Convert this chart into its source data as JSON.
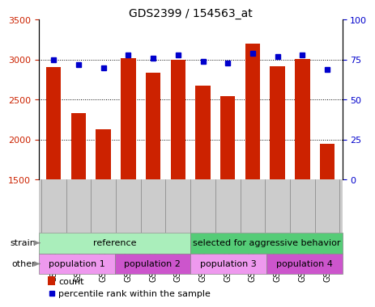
{
  "title": "GDS2399 / 154563_at",
  "samples": [
    "GSM120863",
    "GSM120864",
    "GSM120865",
    "GSM120866",
    "GSM120867",
    "GSM120868",
    "GSM120838",
    "GSM120858",
    "GSM120859",
    "GSM120860",
    "GSM120861",
    "GSM120862"
  ],
  "counts": [
    2910,
    2330,
    2130,
    3020,
    2840,
    3000,
    2670,
    2540,
    3200,
    2920,
    3010,
    1940
  ],
  "percentiles": [
    75,
    72,
    70,
    78,
    76,
    78,
    74,
    73,
    79,
    77,
    78,
    69
  ],
  "ylim_left": [
    1500,
    3500
  ],
  "ylim_right": [
    0,
    100
  ],
  "yticks_left": [
    1500,
    2000,
    2500,
    3000,
    3500
  ],
  "yticks_right": [
    0,
    25,
    50,
    75,
    100
  ],
  "bar_color": "#cc2200",
  "dot_color": "#0000cc",
  "plot_bg": "#ffffff",
  "xtick_bg": "#cccccc",
  "strain_groups": [
    {
      "label": "reference",
      "start": 0,
      "end": 6,
      "color": "#aaeebb"
    },
    {
      "label": "selected for aggressive behavior",
      "start": 6,
      "end": 12,
      "color": "#55cc77"
    }
  ],
  "other_groups": [
    {
      "label": "population 1",
      "start": 0,
      "end": 3,
      "color": "#ee99ee"
    },
    {
      "label": "population 2",
      "start": 3,
      "end": 6,
      "color": "#cc55cc"
    },
    {
      "label": "population 3",
      "start": 6,
      "end": 9,
      "color": "#ee99ee"
    },
    {
      "label": "population 4",
      "start": 9,
      "end": 12,
      "color": "#cc55cc"
    }
  ],
  "strain_label": "strain",
  "other_label": "other",
  "legend_count_label": "count",
  "legend_pct_label": "percentile rank within the sample",
  "tick_label_color_left": "#cc2200",
  "tick_label_color_right": "#0000cc",
  "grid_pct_vals": [
    75,
    50,
    25
  ],
  "bg_color": "#ffffff"
}
